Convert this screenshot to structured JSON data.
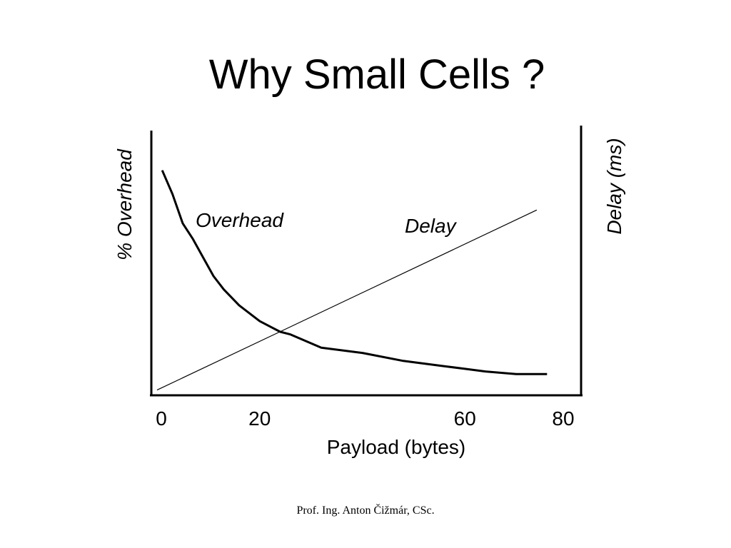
{
  "title": "Why Small Cells ?",
  "footer": "Prof. Ing. Anton Čižmár, CSc.",
  "chart_data": {
    "type": "line",
    "xlabel": "Payload (bytes)",
    "ylabel_left": "% Overhead",
    "ylabel_right": "Delay (ms)",
    "xlim": [
      0,
      80
    ],
    "x_ticks": [
      "0",
      "20",
      "60",
      "80"
    ],
    "x_tick_values": [
      0,
      20,
      60,
      80
    ],
    "grid": false,
    "series": [
      {
        "name": "Overhead",
        "axis": "left",
        "points": [
          [
            1,
            85
          ],
          [
            3,
            76
          ],
          [
            5,
            65
          ],
          [
            7,
            59
          ],
          [
            9,
            52
          ],
          [
            11,
            45
          ],
          [
            13,
            40
          ],
          [
            16,
            34
          ],
          [
            20,
            28
          ],
          [
            24,
            24
          ],
          [
            26,
            23
          ],
          [
            32,
            18
          ],
          [
            40,
            16
          ],
          [
            48,
            13
          ],
          [
            56,
            11
          ],
          [
            60,
            10
          ],
          [
            64,
            9
          ],
          [
            70,
            8
          ],
          [
            76,
            8
          ]
        ]
      },
      {
        "name": "Delay",
        "axis": "right",
        "points": [
          [
            0,
            2
          ],
          [
            74,
            70
          ]
        ]
      }
    ]
  }
}
